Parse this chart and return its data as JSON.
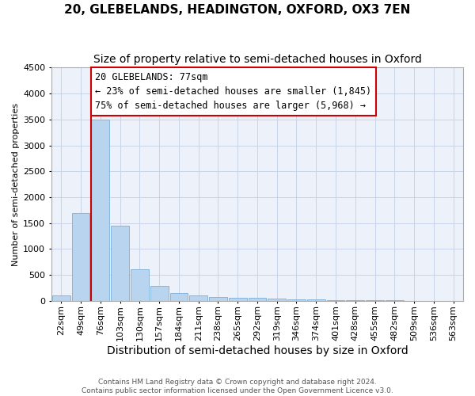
{
  "title": "20, GLEBELANDS, HEADINGTON, OXFORD, OX3 7EN",
  "subtitle": "Size of property relative to semi-detached houses in Oxford",
  "xlabel": "Distribution of semi-detached houses by size in Oxford",
  "ylabel": "Number of semi-detached properties",
  "footer_line1": "Contains HM Land Registry data © Crown copyright and database right 2024.",
  "footer_line2": "Contains public sector information licensed under the Open Government Licence v3.0.",
  "bin_labels": [
    "22sqm",
    "49sqm",
    "76sqm",
    "103sqm",
    "130sqm",
    "157sqm",
    "184sqm",
    "211sqm",
    "238sqm",
    "265sqm",
    "292sqm",
    "319sqm",
    "346sqm",
    "374sqm",
    "401sqm",
    "428sqm",
    "455sqm",
    "482sqm",
    "509sqm",
    "536sqm",
    "563sqm"
  ],
  "bar_heights": [
    110,
    1700,
    3500,
    1450,
    610,
    280,
    150,
    100,
    80,
    60,
    50,
    35,
    25,
    20,
    15,
    10,
    8,
    5,
    4,
    3,
    2
  ],
  "bar_color": "#b8d4ee",
  "bar_edge_color": "#7aaed8",
  "grid_color": "#c8d4e8",
  "background_color": "#edf2fa",
  "vline_color": "#cc0000",
  "property_bin_index": 2,
  "annotation_line1": "20 GLEBELANDS: 77sqm",
  "annotation_line2": "← 23% of semi-detached houses are smaller (1,845)",
  "annotation_line3": "75% of semi-detached houses are larger (5,968) →",
  "annotation_box_color": "#ffffff",
  "annotation_border_color": "#cc0000",
  "ylim_max": 4500,
  "yticks": [
    0,
    500,
    1000,
    1500,
    2000,
    2500,
    3000,
    3500,
    4000,
    4500
  ],
  "title_fontsize": 11,
  "subtitle_fontsize": 10,
  "ylabel_fontsize": 8,
  "xlabel_fontsize": 10,
  "annotation_fontsize": 8.5,
  "tick_fontsize": 8
}
